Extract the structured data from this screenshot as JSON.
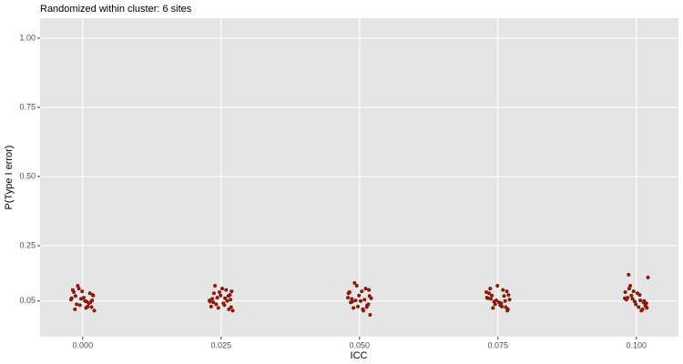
{
  "chart_data": {
    "type": "scatter",
    "title": "Randomized within cluster: 6 sites",
    "xlabel": "ICC",
    "ylabel": "P(Type I error)",
    "color": "#8b1a0a",
    "xlim": [
      -0.0077,
      0.1076
    ],
    "ylim": [
      -0.079,
      1.072
    ],
    "grid": true,
    "xticks": [
      {
        "value": 0,
        "label": "0.000"
      },
      {
        "value": 0.025,
        "label": "0.025"
      },
      {
        "value": 0.05,
        "label": "0.050"
      },
      {
        "value": 0.075,
        "label": "0.075"
      },
      {
        "value": 0.1,
        "label": "0.100"
      }
    ],
    "yticks": [
      0.05,
      0.25,
      {
        "value": 0.5,
        "label": "0.50"
      },
      0.75,
      {
        "value": 1,
        "label": "1.00"
      }
    ],
    "x": [
      -0.0021,
      0.0013,
      -0.0005,
      0.0019,
      -0.0014,
      0.0007,
      -0.0018,
      0.0002,
      0.0016,
      -0.0009,
      0.0011,
      -0.0003,
      0.0021,
      -0.0016,
      0.0004,
      -0.0011,
      0.0018,
      -0.0007,
      0.0009,
      -0.002,
      0.0014,
      -0.0001,
      0.0006,
      -0.0013,
      0.0017,
      0.0229,
      0.0263,
      0.0245,
      0.0269,
      0.0236,
      0.0257,
      0.0232,
      0.0252,
      0.0266,
      0.0241,
      0.0261,
      0.0247,
      0.0271,
      0.0234,
      0.0254,
      0.0239,
      0.0268,
      0.0243,
      0.0259,
      0.023,
      0.0264,
      0.0249,
      0.0256,
      0.0237,
      0.0267,
      0.0479,
      0.0513,
      0.0495,
      0.0519,
      0.0486,
      0.0507,
      0.0482,
      0.0502,
      0.0516,
      0.0491,
      0.0511,
      0.0497,
      0.0521,
      0.0484,
      0.0504,
      0.0489,
      0.0518,
      0.0493,
      0.0509,
      0.048,
      0.0514,
      0.0499,
      0.0506,
      0.0487,
      0.0517,
      0.0729,
      0.0763,
      0.0745,
      0.0769,
      0.0736,
      0.0757,
      0.0732,
      0.0752,
      0.0766,
      0.0741,
      0.0761,
      0.0747,
      0.0771,
      0.0734,
      0.0754,
      0.0739,
      0.0768,
      0.0743,
      0.0759,
      0.073,
      0.0764,
      0.0749,
      0.0756,
      0.0737,
      0.0767,
      0.0979,
      0.1013,
      0.0995,
      0.1019,
      0.0986,
      0.1007,
      0.0982,
      0.1002,
      0.1016,
      0.0991,
      0.1011,
      0.0997,
      0.1021,
      0.0984,
      0.1004,
      0.0989,
      0.1018,
      0.0993,
      0.1009,
      0.098,
      0.1014,
      0.0999,
      0.1006,
      0.0987,
      0.1017
    ],
    "values": [
      0.055,
      0.078,
      0.035,
      0.07,
      0.02,
      0.048,
      0.09,
      0.062,
      0.028,
      0.105,
      0.042,
      0.058,
      0.015,
      0.082,
      0.05,
      0.038,
      0.072,
      0.095,
      0.03,
      0.06,
      0.045,
      0.085,
      0.025,
      0.068,
      0.052,
      0.052,
      0.068,
      0.025,
      0.085,
      0.045,
      0.06,
      0.03,
      0.095,
      0.072,
      0.038,
      0.05,
      0.082,
      0.015,
      0.058,
      0.042,
      0.105,
      0.028,
      0.062,
      0.09,
      0.048,
      0.02,
      0.07,
      0.035,
      0.078,
      0.055,
      0.062,
      0.028,
      0.105,
      0.0,
      0.058,
      0.015,
      0.082,
      0.05,
      0.038,
      0.115,
      0.095,
      0.03,
      0.06,
      0.045,
      0.085,
      0.025,
      0.068,
      0.052,
      0.055,
      0.078,
      0.035,
      0.07,
      0.02,
      0.048,
      0.09,
      0.082,
      0.05,
      0.038,
      0.072,
      0.095,
      0.03,
      0.06,
      0.045,
      0.085,
      0.025,
      0.068,
      0.052,
      0.055,
      0.078,
      0.035,
      0.07,
      0.02,
      0.048,
      0.09,
      0.062,
      0.028,
      0.105,
      0.042,
      0.058,
      0.015,
      0.06,
      0.045,
      0.085,
      0.025,
      0.145,
      0.052,
      0.055,
      0.078,
      0.035,
      0.07,
      0.02,
      0.048,
      0.135,
      0.062,
      0.028,
      0.105,
      0.042,
      0.058,
      0.015,
      0.082,
      0.05,
      0.038,
      0.072,
      0.095,
      0.03
    ]
  }
}
